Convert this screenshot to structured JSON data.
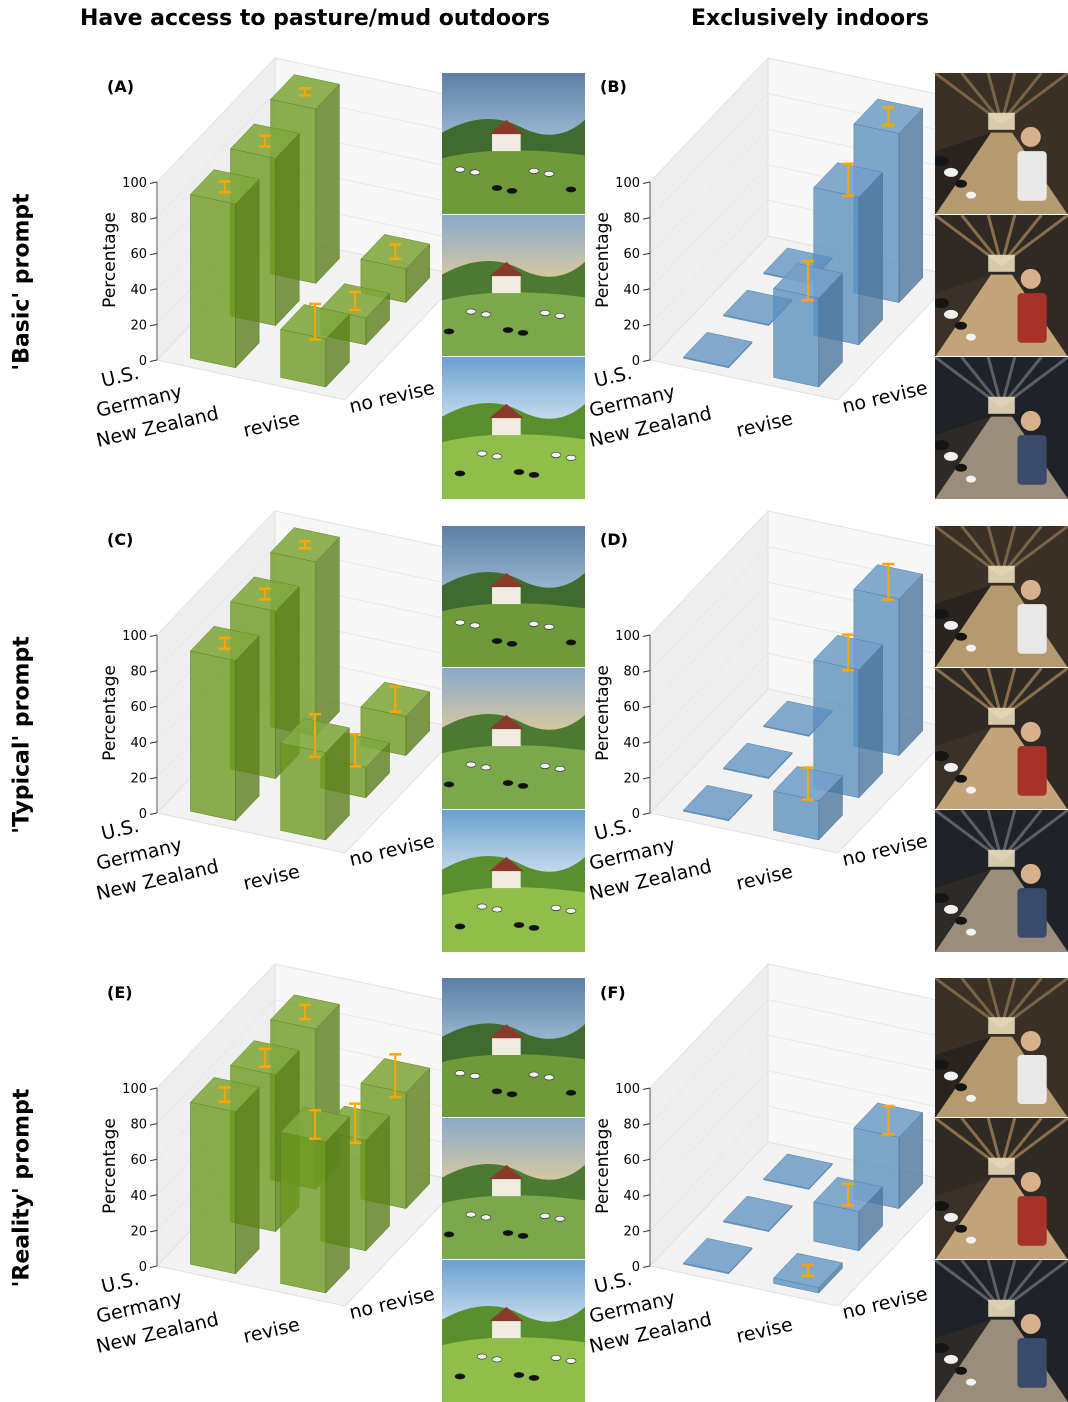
{
  "headers": {
    "outdoor": "Have access to pasture/mud outdoors",
    "indoor": "Exclusively indoors"
  },
  "rows": [
    "'Basic' prompt",
    "'Typical' prompt",
    "'Reality' prompt"
  ],
  "axis": {
    "ylabel": "Percentage",
    "yticks": [
      "0",
      "20",
      "40",
      "60",
      "80",
      "100"
    ],
    "countries": [
      "U.S.",
      "Germany",
      "New Zealand"
    ],
    "conditions": [
      "revise",
      "no revise"
    ]
  },
  "colors": {
    "outdoor": "#6b9a1e",
    "indoor": "#5b8fbf",
    "error": "#ffa500"
  },
  "chart_data": [
    {
      "panel": "(A)",
      "type": "bar3d",
      "group": "outdoor",
      "row": "'Basic' prompt",
      "categories": [
        "U.S.",
        "Germany",
        "New Zealand"
      ],
      "ylim": [
        0,
        100
      ],
      "series": [
        {
          "name": "revise",
          "values": [
            98,
            94,
            92
          ],
          "err": [
            2,
            3,
            3
          ]
        },
        {
          "name": "no revise",
          "values": [
            19,
            15,
            27
          ],
          "err": [
            4,
            5,
            10
          ]
        }
      ]
    },
    {
      "panel": "(B)",
      "type": "bar3d",
      "group": "indoor",
      "row": "'Basic' prompt",
      "categories": [
        "U.S.",
        "Germany",
        "New Zealand"
      ],
      "ylim": [
        0,
        100
      ],
      "series": [
        {
          "name": "revise",
          "values": [
            0,
            0,
            0
          ],
          "err": [
            0,
            0,
            0
          ]
        },
        {
          "name": "no revise",
          "values": [
            95,
            83,
            50
          ],
          "err": [
            5,
            9,
            11
          ]
        }
      ]
    },
    {
      "panel": "(C)",
      "type": "bar3d",
      "group": "outdoor",
      "row": "'Typical' prompt",
      "categories": [
        "U.S.",
        "Germany",
        "New Zealand"
      ],
      "ylim": [
        0,
        100
      ],
      "series": [
        {
          "name": "revise",
          "values": [
            98,
            94,
            90
          ],
          "err": [
            2,
            3,
            3
          ]
        },
        {
          "name": "no revise",
          "values": [
            22,
            17,
            49
          ],
          "err": [
            7,
            9,
            12
          ]
        }
      ]
    },
    {
      "panel": "(D)",
      "type": "bar3d",
      "group": "indoor",
      "row": "'Typical' prompt",
      "categories": [
        "U.S.",
        "Germany",
        "New Zealand"
      ],
      "ylim": [
        0,
        100
      ],
      "series": [
        {
          "name": "revise",
          "values": [
            0,
            0,
            0
          ],
          "err": [
            0,
            0,
            0
          ]
        },
        {
          "name": "no revise",
          "values": [
            88,
            72,
            22
          ],
          "err": [
            10,
            10,
            9
          ]
        }
      ]
    },
    {
      "panel": "(E)",
      "type": "bar3d",
      "group": "outdoor",
      "row": "'Reality' prompt",
      "categories": [
        "U.S.",
        "Germany",
        "New Zealand"
      ],
      "ylim": [
        0,
        100
      ],
      "series": [
        {
          "name": "revise",
          "values": [
            90,
            88,
            91
          ],
          "err": [
            4,
            5,
            4
          ]
        },
        {
          "name": "no revise",
          "values": [
            65,
            62,
            85
          ],
          "err": [
            12,
            11,
            8
          ]
        }
      ]
    },
    {
      "panel": "(F)",
      "type": "bar3d",
      "group": "indoor",
      "row": "'Reality' prompt",
      "categories": [
        "U.S.",
        "Germany",
        "New Zealand"
      ],
      "ylim": [
        0,
        100
      ],
      "series": [
        {
          "name": "revise",
          "values": [
            0,
            0,
            0
          ],
          "err": [
            0,
            0,
            0
          ]
        },
        {
          "name": "no revise",
          "values": [
            40,
            22,
            3
          ],
          "err": [
            8,
            6,
            3
          ]
        }
      ]
    }
  ]
}
